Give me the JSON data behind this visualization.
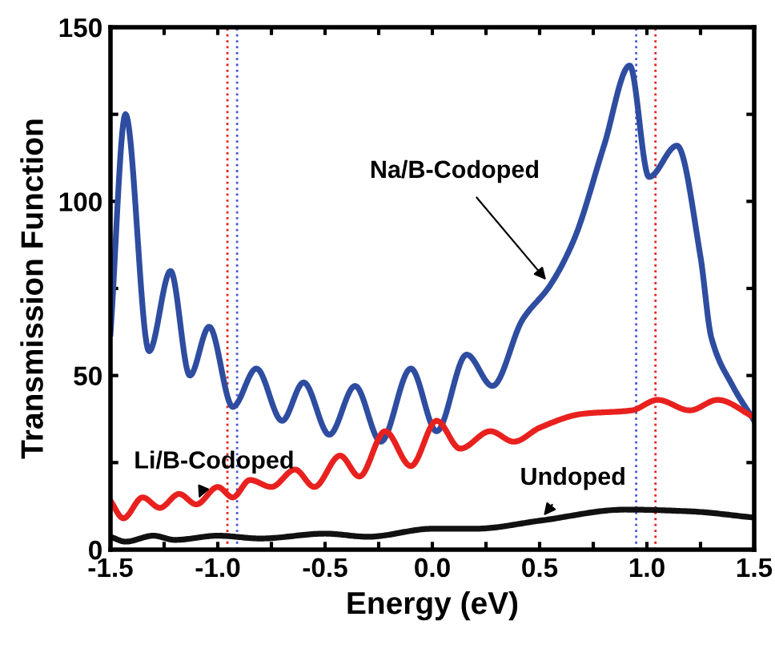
{
  "chart_data": {
    "type": "line",
    "xlabel": "Energy (eV)",
    "ylabel": "Transmission Function",
    "xlim": [
      -1.5,
      1.5
    ],
    "ylim": [
      0,
      150
    ],
    "xticks": [
      -1.5,
      {
        "value": -1.25,
        "label": null
      },
      {
        "value": -1.0,
        "label": "-1.0"
      },
      {
        "value": -0.75,
        "label": null
      },
      -0.5,
      {
        "value": -0.25,
        "label": null
      },
      {
        "value": 0.0,
        "label": "0.0"
      },
      {
        "value": 0.25,
        "label": null
      },
      0.5,
      {
        "value": 0.75,
        "label": null
      },
      {
        "value": 1.0,
        "label": "1.0"
      },
      {
        "value": 1.25,
        "label": null
      },
      1.5
    ],
    "yticks": [
      0,
      {
        "value": 25,
        "label": null
      },
      50,
      {
        "value": 75,
        "label": null
      },
      100,
      {
        "value": 125,
        "label": null
      },
      150
    ],
    "grid": false,
    "legend": false,
    "marker": "none",
    "line_style": "solid",
    "series": [
      {
        "color": "#2e4da0",
        "x": [
          -1.5,
          -1.43,
          -1.32,
          -1.22,
          -1.13,
          -1.04,
          -0.93,
          -0.82,
          -0.7,
          -0.6,
          -0.48,
          -0.36,
          -0.24,
          -0.1,
          0.02,
          0.16,
          0.28,
          0.42,
          0.55,
          0.66,
          0.8,
          0.92,
          1.01,
          1.14,
          1.25,
          1.3,
          1.4,
          1.5
        ],
        "values": [
          62,
          125,
          57,
          80,
          50,
          64,
          41,
          52,
          37,
          48,
          33,
          47,
          31,
          52,
          34,
          56,
          47,
          66,
          76,
          89,
          116,
          139,
          107,
          116,
          84,
          61,
          47,
          37
        ]
      },
      {
        "color": "#e8211f",
        "x": [
          -1.5,
          -1.44,
          -1.35,
          -1.27,
          -1.18,
          -1.1,
          -1.0,
          -0.93,
          -0.85,
          -0.75,
          -0.64,
          -0.55,
          -0.43,
          -0.34,
          -0.22,
          -0.1,
          0.02,
          0.13,
          0.27,
          0.38,
          0.5,
          0.7,
          0.93,
          1.05,
          1.2,
          1.33,
          1.5
        ],
        "values": [
          14,
          9,
          15,
          12,
          16,
          13,
          18,
          15,
          20,
          18,
          23,
          18,
          27,
          21,
          34,
          24,
          37,
          29,
          34,
          31,
          35,
          39,
          40,
          43,
          40,
          43,
          38
        ]
      },
      {
        "color": "#111111",
        "x": [
          -1.5,
          -1.43,
          -1.3,
          -1.2,
          -1.0,
          -0.8,
          -0.5,
          -0.3,
          0.0,
          0.2,
          0.5,
          0.9,
          1.2,
          1.5
        ],
        "values": [
          3.7,
          2.3,
          4,
          2.8,
          4,
          3.2,
          4.6,
          3.7,
          6,
          6,
          8.3,
          11.5,
          11,
          9.2
        ]
      }
    ],
    "ref_lines": [
      {
        "axis": "x",
        "value": -0.91,
        "color": "#4a5ad8",
        "line_style": "dotted"
      },
      {
        "axis": "x",
        "value": 0.95,
        "color": "#4a5ad8",
        "line_style": "dotted"
      },
      {
        "axis": "x",
        "value": -0.955,
        "color": "#e8211f",
        "line_style": "dotted"
      },
      {
        "axis": "x",
        "value": 1.04,
        "color": "#e8211f",
        "line_style": "dotted"
      }
    ],
    "annotations": [
      {
        "text": "Na/B-Codoped",
        "x": 0.55,
        "y": 76
      },
      {
        "text": "Li/B-Codoped",
        "x": -1.1,
        "y": 13
      },
      {
        "text": "Undoped",
        "x": 0.5,
        "y": 8.3
      }
    ]
  }
}
